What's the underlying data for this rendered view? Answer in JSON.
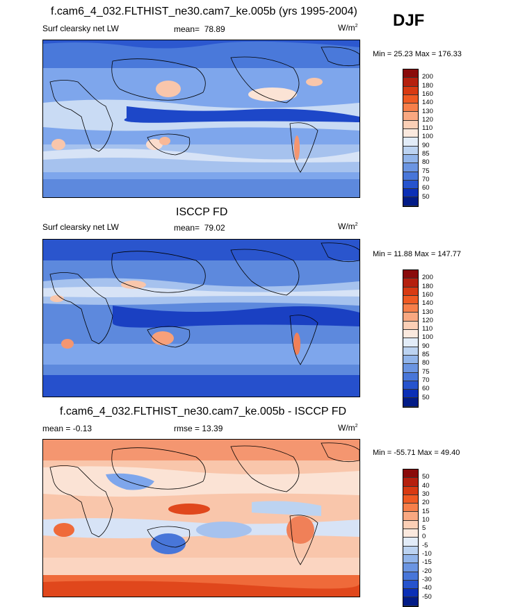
{
  "panel1": {
    "title": "f.cam6_4_032.FLTHIST_ne30.cam7_ke.005b (yrs 1995-2004)",
    "variable": "Surf clearsky net LW",
    "mean_label": "mean=",
    "mean": "78.89",
    "units_base": "W/m",
    "units_exp": "2",
    "minmax": "Min =  25.23 Max = 176.33"
  },
  "season": "DJF",
  "panel2": {
    "title": "ISCCP FD",
    "variable": "Surf clearsky net LW",
    "mean_label": "mean=",
    "mean": "79.02",
    "units_base": "W/m",
    "units_exp": "2",
    "minmax": "Min =  11.88 Max = 147.77"
  },
  "panel3": {
    "title": "f.cam6_4_032.FLTHIST_ne30.cam7_ke.005b - ISCCP FD",
    "mean_text": "mean =  -0.13",
    "rmse_text": "rmse =  13.39",
    "units": "W/m",
    "units_exp": "2",
    "minmax": "Min = -55.71 Max =  49.40"
  },
  "colorbar_abs": {
    "ticks": [
      "200",
      "180",
      "160",
      "140",
      "130",
      "120",
      "110",
      "100",
      "90",
      "85",
      "80",
      "75",
      "70",
      "60",
      "50"
    ],
    "colors": [
      "#8a0b0b",
      "#b5200e",
      "#d83a12",
      "#ef5a23",
      "#f77f4a",
      "#f9a881",
      "#fbcfb6",
      "#fbe9de",
      "#e2ecf8",
      "#bcd3f1",
      "#92b5ea",
      "#6b95e2",
      "#4876d9",
      "#2653cd",
      "#0b2fb6",
      "#031c87"
    ]
  },
  "colorbar_diff": {
    "ticks": [
      "50",
      "40",
      "30",
      "20",
      "15",
      "10",
      "5",
      "0",
      "-5",
      "-10",
      "-15",
      "-20",
      "-30",
      "-40",
      "-50"
    ],
    "colors": [
      "#8a0b0b",
      "#b5200e",
      "#d83a12",
      "#ef5a23",
      "#f77f4a",
      "#f9a881",
      "#fbcfb6",
      "#fbe9de",
      "#e2ecf8",
      "#bcd3f1",
      "#92b5ea",
      "#6b95e2",
      "#4876d9",
      "#2653cd",
      "#0b2fb6",
      "#031c87"
    ]
  }
}
